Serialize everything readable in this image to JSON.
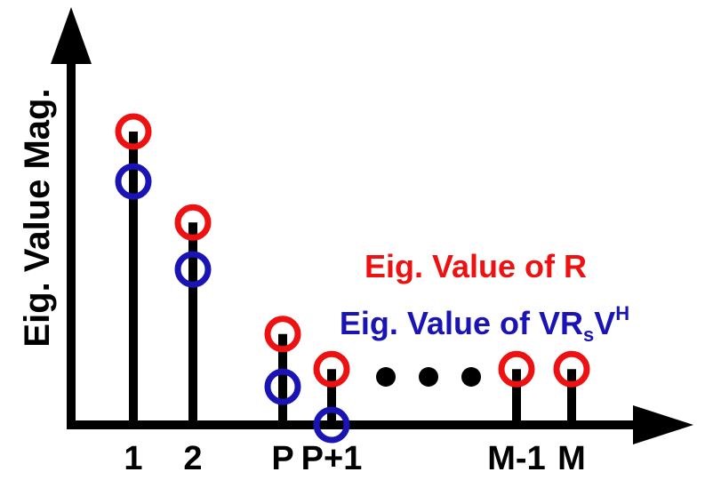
{
  "chart_data": {
    "type": "stem",
    "ylabel": "Eig. Value Mag.",
    "xlabel": "",
    "x_tick_labels": [
      "1",
      "2",
      "P",
      "P+1",
      "M-1",
      "M"
    ],
    "gap_marker": "ellipsis",
    "series": [
      {
        "name": "Eig. Value of R",
        "color": "#ee1111",
        "marker": "circle-open",
        "values": [
          1.0,
          0.69,
          0.31,
          0.19,
          0.19,
          0.19
        ]
      },
      {
        "name": "Eig. Value of VR_sV^H",
        "color": "#1a14b4",
        "marker": "circle-open",
        "values": [
          0.83,
          0.53,
          0.13,
          0.0,
          null,
          null
        ]
      }
    ]
  },
  "legend": {
    "r_label": "Eig. Value of R",
    "v_label_main": "Eig. Value of VR",
    "v_label_sub": "s",
    "v_label_v": "V",
    "v_label_sup": "H"
  },
  "colors": {
    "axis": "#000000",
    "series_r": "#ee1111",
    "series_v": "#1a14b4"
  }
}
